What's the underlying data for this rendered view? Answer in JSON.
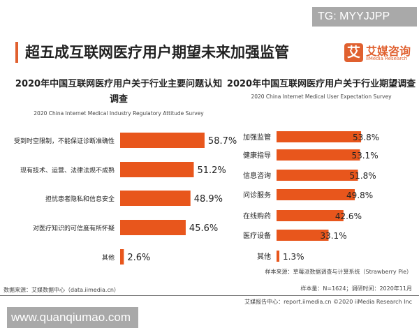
{
  "watermark_top": "TG: MYYJJPP",
  "watermark_bottom": "www.quanqiumao.com",
  "title": "超五成互联网医疗用户期望未来加强监管",
  "logo": {
    "mark": "艾",
    "cn": "艾媒咨询",
    "en": "iiMedia Research"
  },
  "colors": {
    "bar": "#e8561c",
    "accent": "#e0602f"
  },
  "chart_data": [
    {
      "type": "bar",
      "orientation": "horizontal",
      "title": "2020年中国互联网医疗用户关于行业主要问题认知调查",
      "subtitle": "2020 China Internet Medical Industry Regulatory Attitude Survey",
      "categories": [
        "受到时空限制，不能保证诊断准确性",
        "现有技术、运营、法律法规不成熟",
        "担忧患者隐私和信息安全",
        "对医疗知识的可信度有所怀疑",
        "其他"
      ],
      "values": [
        58.7,
        51.2,
        48.9,
        45.6,
        2.6
      ],
      "unit": "%"
    },
    {
      "type": "bar",
      "orientation": "horizontal",
      "title": "2020年中国互联网医疗用户关于行业期望调查",
      "subtitle": "2020 China Internet Medical User Expectation Survey",
      "categories": [
        "加强监管",
        "健康指导",
        "信息咨询",
        "问诊服务",
        "在线购药",
        "医疗设备",
        "其他"
      ],
      "values": [
        53.8,
        53.1,
        51.8,
        49.8,
        42.6,
        33.1,
        1.3
      ],
      "unit": "%"
    }
  ],
  "footer": {
    "source_left": "数据来源：艾媒数据中心（data.iimedia.cn）",
    "sample_source": "样本来源：草莓派数据调查与计算系统（Strawberry Pie）",
    "sample_size": "样本量：N=1624；调研时间：2020年11月",
    "report": "艾媒报告中心：report.iimedia.cn   ©2020  iiMedia Research  Inc"
  }
}
